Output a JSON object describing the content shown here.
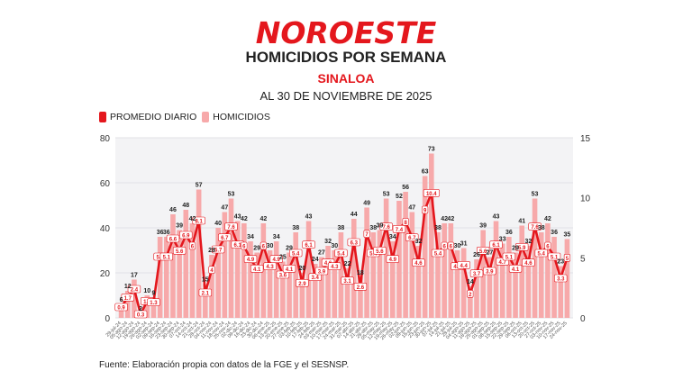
{
  "header": {
    "logo": "NOROESTE",
    "title": "HOMICIDIOS POR SEMANA",
    "subtitle": "SINALOA",
    "date": "AL 30 DE NOVIEMBRE DE 2025"
  },
  "footer": "Fuente: Elaboración propia con datos de la FGE y el SESNSP.",
  "colors": {
    "brand": "#e4171d",
    "bars": "#f7a9aa",
    "line": "#e4171d",
    "plot_bg": "#f3f3f5"
  },
  "chart_data": {
    "type": "bar",
    "legend": {
      "position": "top-left",
      "entries": [
        "PROMEDIO DIARIO",
        "HOMICIDIOS"
      ]
    },
    "ylim": [
      0,
      80
    ],
    "yticks": [
      0,
      20,
      40,
      60,
      80
    ],
    "y2lim": [
      0,
      15
    ],
    "y2ticks": [
      0,
      5,
      10,
      15
    ],
    "grid": true,
    "categories": [
      "29-jul-24",
      "05-ago-24",
      "12-ago-24",
      "19-ago-24",
      "26-ago-24",
      "02-sep-24",
      "09-sep-24",
      "16-sep-24",
      "23-sep-24",
      "30-sep-24",
      "07-oct-24",
      "14-oct-24",
      "21-oct-24",
      "28-oct-24",
      "04-nov-24",
      "11-nov-24",
      "18-nov-24",
      "25-nov-24",
      "02-dic-24",
      "09-dic-24",
      "16-dic-24",
      "23-dic-24",
      "30-dic-24",
      "06-ene-25",
      "13-ene-25",
      "20-ene-25",
      "27-ene-25",
      "03-feb-25",
      "10-feb-25",
      "17-feb-25",
      "24-feb-25",
      "03-mar-25",
      "10-mar-25",
      "17-mar-25",
      "24-mar-25",
      "31-mar-25",
      "07-abr-25",
      "14-abr-25",
      "21-abr-25",
      "28-abr-25",
      "05-may-25",
      "12-may-25",
      "19-may-25",
      "26-may-25",
      "02-jun-25",
      "09-jun-25",
      "16-jun-25",
      "23-jun-25",
      "30-jun-25",
      "07-jul-25",
      "14-jul-25",
      "21-jul-25",
      "28-jul-25",
      "04-ago-25",
      "11-ago-25",
      "18-ago-25",
      "25-ago-25",
      "01-sep-25",
      "08-sep-25",
      "15-sep-25",
      "22-sep-25",
      "29-sep-25",
      "06-oct-25",
      "13-oct-25",
      "20-oct-25",
      "27-oct-25",
      "03-nov-25",
      "10-nov-25",
      "17-nov-25",
      "24-nov-25"
    ],
    "series": [
      {
        "name": "HOMICIDIOS",
        "type": "bar",
        "axis": "left",
        "values": [
          6,
          12,
          17,
          2,
          10,
          9,
          36,
          36,
          46,
          39,
          48,
          42,
          57,
          15,
          28,
          40,
          47,
          53,
          43,
          42,
          34,
          29,
          42,
          30,
          34,
          25,
          29,
          38,
          20,
          43,
          24,
          27,
          32,
          30,
          38,
          22,
          44,
          18,
          49,
          38,
          39,
          53,
          34,
          52,
          56,
          47,
          32,
          63,
          73,
          38,
          42,
          42,
          30,
          31,
          14,
          26,
          39,
          27,
          43,
          33,
          36,
          29,
          41,
          32,
          53,
          38,
          42,
          36,
          23,
          35
        ]
      },
      {
        "name": "PROMEDIO DIARIO",
        "type": "line",
        "axis": "right",
        "values": [
          0.9,
          1.7,
          2.4,
          0.3,
          1.4,
          1.3,
          5.1,
          5.1,
          6.6,
          5.6,
          6.9,
          6.0,
          8.1,
          2.1,
          4.0,
          5.7,
          6.7,
          7.6,
          6.1,
          6.0,
          4.9,
          4.1,
          6.0,
          4.3,
          4.9,
          3.6,
          4.1,
          5.4,
          2.9,
          6.1,
          3.4,
          3.9,
          4.6,
          4.3,
          5.4,
          3.1,
          6.3,
          2.6,
          7.0,
          5.4,
          5.6,
          7.6,
          4.9,
          7.4,
          8.0,
          6.7,
          4.6,
          9.0,
          10.4,
          5.4,
          6.0,
          6.0,
          4.3,
          4.4,
          2.0,
          3.7,
          5.6,
          3.9,
          6.1,
          4.7,
          5.1,
          4.1,
          5.9,
          4.6,
          7.6,
          5.4,
          6.0,
          5.1,
          3.3,
          5.0
        ]
      }
    ]
  }
}
